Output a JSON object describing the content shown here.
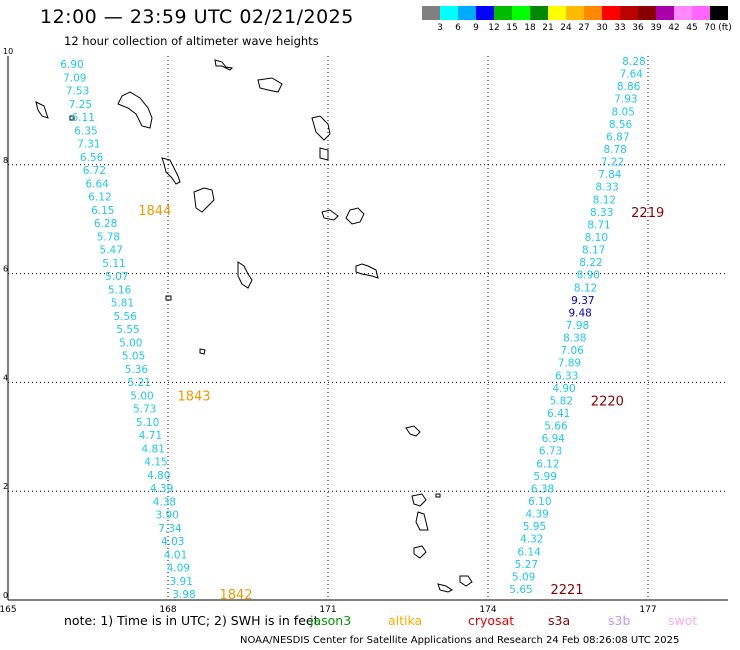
{
  "title": "12:00 — 23:59 UTC 02/21/2025",
  "subtitle": "12 hour collection of altimeter wave heights",
  "legend": {
    "unit": "(ft)",
    "colors": [
      "#808080",
      "#00ffff",
      "#00aaff",
      "#0000ff",
      "#00bb00",
      "#00ff00",
      "#008800",
      "#ffff00",
      "#ffbb00",
      "#ff8800",
      "#ff0000",
      "#bb0000",
      "#880000",
      "#aa00aa",
      "#ff88ff",
      "#ff66ff",
      "#000000"
    ],
    "labels": [
      "3",
      "6",
      "9",
      "12",
      "15",
      "18",
      "21",
      "24",
      "27",
      "30",
      "33",
      "36",
      "39",
      "42",
      "45",
      "70"
    ]
  },
  "map": {
    "x_ticks": [
      "165",
      "168",
      "171",
      "174",
      "177"
    ],
    "y_ticks": [
      "0",
      "2",
      "4",
      "6",
      "8",
      "10"
    ],
    "lon_range": [
      165,
      178.5
    ],
    "lat_range": [
      0,
      10
    ]
  },
  "tracks": [
    {
      "color": "#22c8e8",
      "values": [
        "6.90",
        "7.09",
        "7.53",
        "7.25",
        "6.11",
        "6.35",
        "7.31",
        "6.56",
        "6.72",
        "6.64",
        "6.12",
        "6.15",
        "6.28",
        "5.78",
        "5.47",
        "5.11",
        "5.07",
        "5.16",
        "5.81",
        "5.56",
        "5.55",
        "5.00",
        "5.05",
        "5.36",
        "5.21",
        "5.00",
        "5.73",
        "5.10",
        "4.71",
        "4.81",
        "4.15",
        "4.80",
        "4.39",
        "4.38",
        "3.90",
        "7.34",
        "4.03",
        "4.01",
        "4.09",
        "3.91",
        "3.98"
      ],
      "time_labels": [
        {
          "text": "1844",
          "index": 11,
          "color": "#ee9900"
        },
        {
          "text": "1843",
          "index": 25,
          "color": "#ee9900"
        },
        {
          "text": "1842",
          "index": 40,
          "color": "#ee9900"
        }
      ]
    },
    {
      "color": "#22c8e8",
      "values": [
        "8.28",
        "7.64",
        "8.86",
        "7.93",
        "8.05",
        "8.56",
        "6.87",
        "8.78",
        "7.22",
        "7.84",
        "8.33",
        "8.12",
        "8.33",
        "8.71",
        "8.10",
        "8.17",
        "8.22",
        "8.90",
        "8.12",
        "9.37",
        "9.48",
        "7.98",
        "8.38",
        "7.06",
        "7.89",
        "6.33",
        "4.90",
        "5.82",
        "6.41",
        "5.66",
        "6.94",
        "6.73",
        "6.12",
        "5.99",
        "6.38",
        "6.10",
        "4.39",
        "5.95",
        "4.32",
        "6.14",
        "5.27",
        "5.09",
        "5.65"
      ],
      "highlight": {
        "19": "#0000cc",
        "20": "#0000cc"
      },
      "time_labels": [
        {
          "text": "2219",
          "index": 12,
          "color": "#880000"
        },
        {
          "text": "2220",
          "index": 27,
          "color": "#880000"
        },
        {
          "text": "2221",
          "index": 42,
          "color": "#880000"
        }
      ]
    }
  ],
  "note": {
    "prefix": "note:  1) Time is in UTC;  2) SWH is in feet",
    "satellites": [
      {
        "name": "jason3",
        "color": "#009900"
      },
      {
        "name": "altika",
        "color": "#ffaa00"
      },
      {
        "name": "cryosat",
        "color": "#ee0000"
      },
      {
        "name": "s3a",
        "color": "#880000"
      },
      {
        "name": "s3b",
        "color": "#bb99ee"
      },
      {
        "name": "swot",
        "color": "#ffaaee"
      }
    ]
  },
  "footer": "NOAA/NESDIS Center for Satellite Applications and Research    24 Feb 08:26:08 UTC 2025"
}
